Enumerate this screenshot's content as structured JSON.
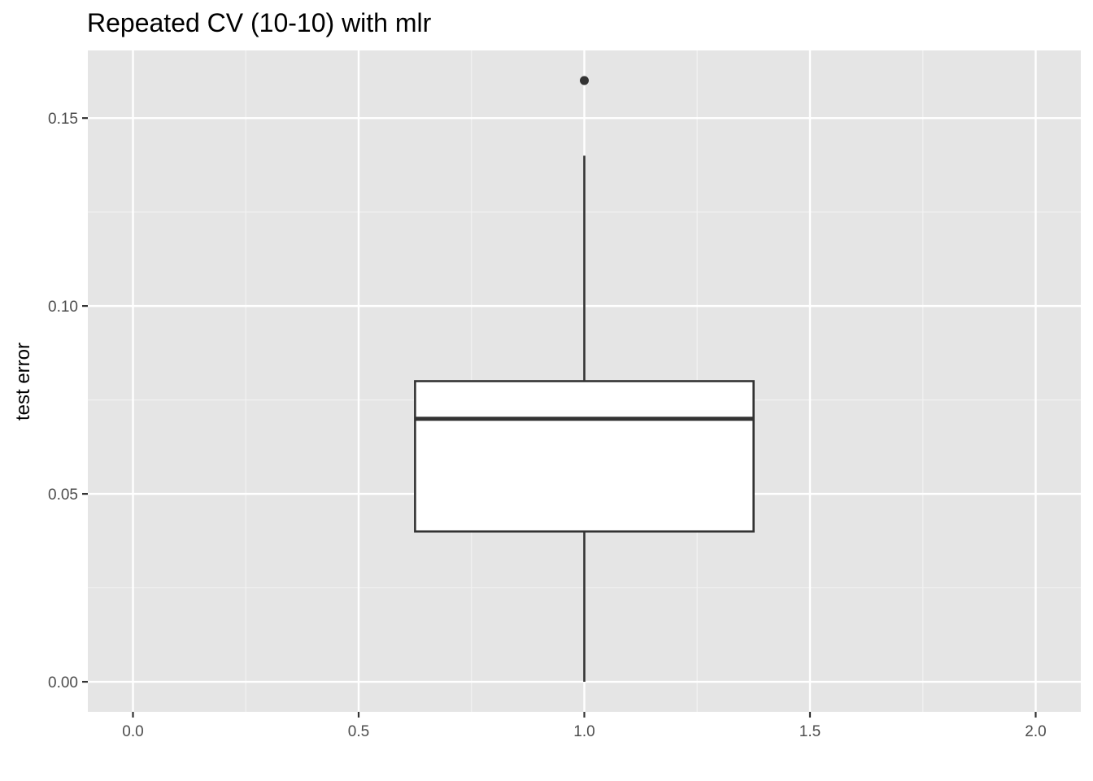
{
  "chart_data": {
    "type": "boxplot",
    "title": "Repeated CV (10-10) with mlr",
    "xlabel": "",
    "ylabel": "test error",
    "xlim": [
      -0.1,
      2.1
    ],
    "ylim": [
      -0.008,
      0.168
    ],
    "x_ticks": [
      0.0,
      0.5,
      1.0,
      1.5,
      2.0
    ],
    "x_tick_labels": [
      "0.0",
      "0.5",
      "1.0",
      "1.5",
      "2.0"
    ],
    "y_ticks": [
      0.0,
      0.05,
      0.1,
      0.15
    ],
    "y_tick_labels": [
      "0.00",
      "0.05",
      "0.10",
      "0.15"
    ],
    "grid": true,
    "panel_background": "#e5e5e5",
    "box": {
      "x": 1.0,
      "x_min": 0.625,
      "x_max": 1.375,
      "lower_whisker": 0.0,
      "q1": 0.04,
      "median": 0.07,
      "q3": 0.08,
      "upper_whisker": 0.14,
      "outliers": [
        0.16
      ],
      "fill": "#ffffff",
      "stroke": "#333333"
    }
  }
}
